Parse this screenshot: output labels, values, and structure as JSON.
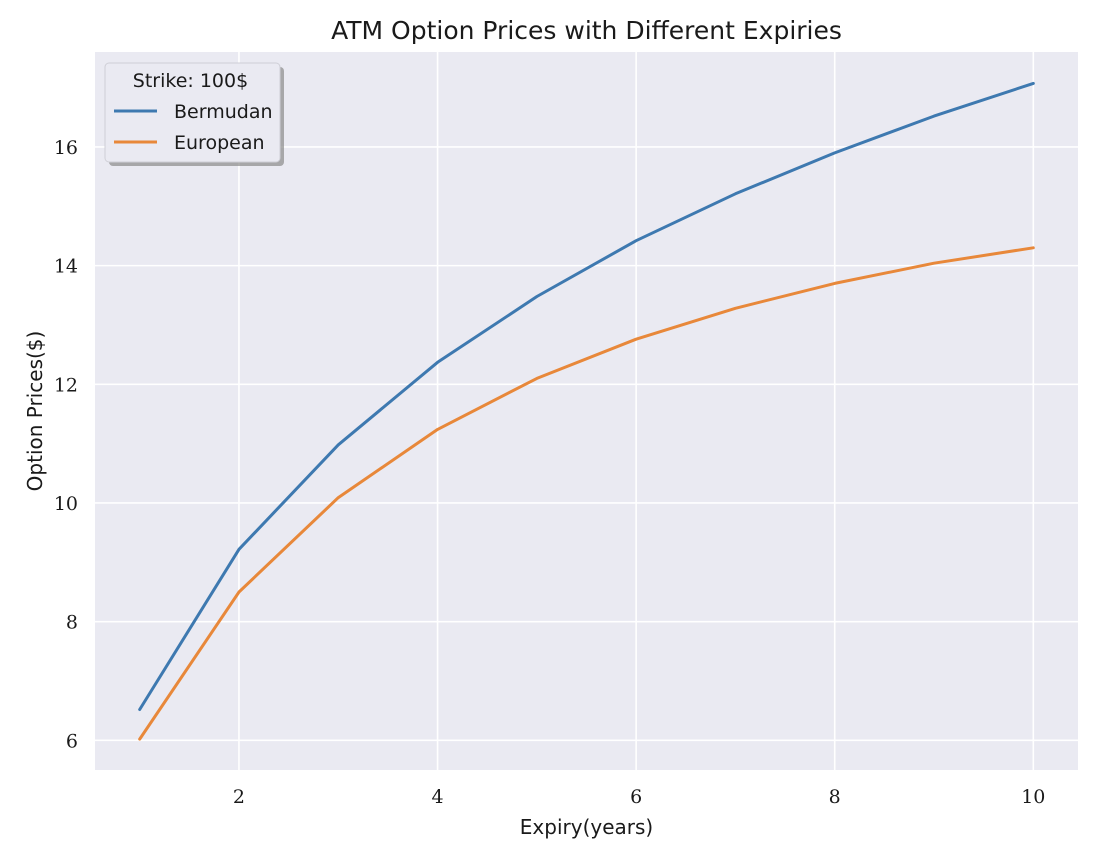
{
  "chart_data": {
    "type": "line",
    "title": "ATM Option Prices with Different Expiries",
    "xlabel": "Expiry(years)",
    "ylabel": "Option Prices($)",
    "x": [
      1,
      2,
      3,
      4,
      5,
      6,
      7,
      8,
      9,
      10
    ],
    "xlim": [
      0.55,
      10.45
    ],
    "ylim": [
      5.5,
      17.6
    ],
    "xticks": [
      2,
      4,
      6,
      8,
      10
    ],
    "yticks": [
      6,
      8,
      10,
      12,
      14,
      16
    ],
    "grid": true,
    "legend": {
      "title": "Strike: 100$",
      "placement": "top-left"
    },
    "series": [
      {
        "name": "Bermudan",
        "color": "#3e79b0",
        "values": [
          6.52,
          9.22,
          10.98,
          12.37,
          13.48,
          14.42,
          15.21,
          15.9,
          16.52,
          17.07
        ]
      },
      {
        "name": "European",
        "color": "#e8883a",
        "values": [
          6.02,
          8.5,
          10.09,
          11.24,
          12.1,
          12.76,
          13.28,
          13.7,
          14.04,
          14.3
        ]
      }
    ]
  },
  "style": {
    "plot_background": "#eaeaf2",
    "grid_color": "#ffffff"
  }
}
